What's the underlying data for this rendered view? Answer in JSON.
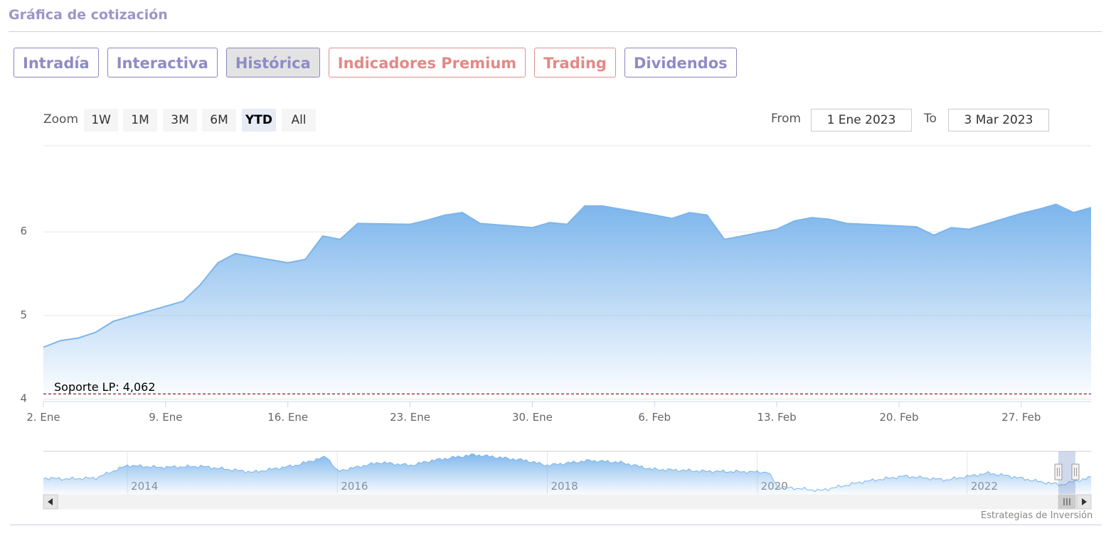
{
  "header": {
    "title": "Gráfica de cotización"
  },
  "tabs": [
    {
      "label": "Intradía",
      "active": false,
      "premium": false
    },
    {
      "label": "Interactiva",
      "active": false,
      "premium": false
    },
    {
      "label": "Histórica",
      "active": true,
      "premium": false
    },
    {
      "label": "Indicadores Premium",
      "active": false,
      "premium": true
    },
    {
      "label": "Trading",
      "active": false,
      "premium": true
    },
    {
      "label": "Dividendos",
      "active": false,
      "premium": false
    }
  ],
  "zoom": {
    "label": "Zoom",
    "options": [
      "1W",
      "1M",
      "3M",
      "6M",
      "YTD",
      "All"
    ],
    "selected": "YTD"
  },
  "range": {
    "from_label": "From",
    "from_value": "1 Ene 2023",
    "to_label": "To",
    "to_value": "3 Mar 2023"
  },
  "credits": "Estrategias de Inversión",
  "colors": {
    "series": "#7cb5ec",
    "support_line": "#8b0000",
    "tab_text": "#8f8bc6",
    "premium_text": "#e28a86"
  },
  "chart_data": {
    "type": "area",
    "title": "",
    "xlabel": "",
    "ylabel": "",
    "ylim": [
      3.97,
      7.03
    ],
    "y_ticks": [
      4,
      5,
      6
    ],
    "x_ticks": [
      "2. Ene",
      "9. Ene",
      "16. Ene",
      "23. Ene",
      "30. Ene",
      "6. Feb",
      "13. Feb",
      "20. Feb",
      "27. Feb"
    ],
    "grid": true,
    "series": [
      {
        "x": [
          "2023-01-02",
          "2023-01-03",
          "2023-01-04",
          "2023-01-05",
          "2023-01-06",
          "2023-01-09",
          "2023-01-10",
          "2023-01-11",
          "2023-01-12",
          "2023-01-13",
          "2023-01-16",
          "2023-01-17",
          "2023-01-18",
          "2023-01-19",
          "2023-01-20",
          "2023-01-23",
          "2023-01-24",
          "2023-01-25",
          "2023-01-26",
          "2023-01-27",
          "2023-01-30",
          "2023-01-31",
          "2023-02-01",
          "2023-02-02",
          "2023-02-03",
          "2023-02-06",
          "2023-02-07",
          "2023-02-08",
          "2023-02-09",
          "2023-02-10",
          "2023-02-13",
          "2023-02-14",
          "2023-02-15",
          "2023-02-16",
          "2023-02-17",
          "2023-02-20",
          "2023-02-21",
          "2023-02-22",
          "2023-02-23",
          "2023-02-24",
          "2023-02-27",
          "2023-02-28",
          "2023-03-01",
          "2023-03-02",
          "2023-03-03"
        ],
        "values": [
          4.62,
          4.7,
          4.73,
          4.8,
          4.93,
          5.11,
          5.17,
          5.37,
          5.63,
          5.74,
          5.63,
          5.67,
          5.95,
          5.91,
          6.1,
          6.09,
          6.14,
          6.2,
          6.23,
          6.1,
          6.05,
          6.11,
          6.09,
          6.31,
          6.31,
          6.2,
          6.16,
          6.23,
          6.2,
          5.91,
          6.03,
          6.13,
          6.17,
          6.15,
          6.1,
          6.07,
          6.06,
          5.96,
          6.05,
          6.03,
          6.22,
          6.27,
          6.33,
          6.23,
          6.29
        ]
      }
    ],
    "annotations": [
      {
        "label": "Soporte LP: 4,062",
        "y": 4.062,
        "style": "dashed"
      }
    ],
    "navigator": {
      "year_labels": [
        "2014",
        "2016",
        "2018",
        "2020",
        "2022"
      ],
      "years": [
        2013.2,
        2023.18
      ],
      "series": [
        {
          "x": 2013.2,
          "y": 5.2
        },
        {
          "x": 2013.4,
          "y": 5.1
        },
        {
          "x": 2013.7,
          "y": 5.2
        },
        {
          "x": 2014.0,
          "y": 6.5
        },
        {
          "x": 2014.3,
          "y": 6.3
        },
        {
          "x": 2014.7,
          "y": 6.4
        },
        {
          "x": 2015.2,
          "y": 5.8
        },
        {
          "x": 2015.6,
          "y": 6.5
        },
        {
          "x": 2015.9,
          "y": 7.4
        },
        {
          "x": 2016.0,
          "y": 5.9
        },
        {
          "x": 2016.4,
          "y": 6.8
        },
        {
          "x": 2016.7,
          "y": 6.5
        },
        {
          "x": 2016.9,
          "y": 7.0
        },
        {
          "x": 2017.3,
          "y": 7.6
        },
        {
          "x": 2017.8,
          "y": 7.0
        },
        {
          "x": 2018.0,
          "y": 6.5
        },
        {
          "x": 2018.4,
          "y": 7.0
        },
        {
          "x": 2018.7,
          "y": 6.8
        },
        {
          "x": 2019.0,
          "y": 6.1
        },
        {
          "x": 2019.5,
          "y": 5.9
        },
        {
          "x": 2020.1,
          "y": 5.8
        },
        {
          "x": 2020.2,
          "y": 4.3
        },
        {
          "x": 2020.6,
          "y": 3.9
        },
        {
          "x": 2021.0,
          "y": 4.8
        },
        {
          "x": 2021.4,
          "y": 5.4
        },
        {
          "x": 2021.8,
          "y": 5.0
        },
        {
          "x": 2022.2,
          "y": 5.7
        },
        {
          "x": 2022.4,
          "y": 5.4
        },
        {
          "x": 2022.7,
          "y": 4.8
        },
        {
          "x": 2022.9,
          "y": 4.5
        },
        {
          "x": 2023.18,
          "y": 5.3
        }
      ]
    }
  }
}
